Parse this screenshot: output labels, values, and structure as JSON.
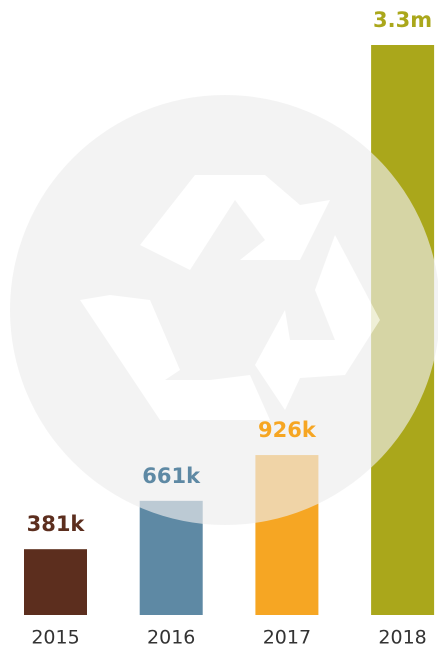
{
  "chart_data": {
    "type": "bar",
    "categories": [
      "2015",
      "2016",
      "2017",
      "2018"
    ],
    "values": [
      381000,
      661000,
      926000,
      3300000
    ],
    "value_labels": [
      "381k",
      "661k",
      "926k",
      "3.3m"
    ],
    "colors": [
      "#5c2e1e",
      "#5e89a4",
      "#f6a623",
      "#aaa71b"
    ]
  }
}
